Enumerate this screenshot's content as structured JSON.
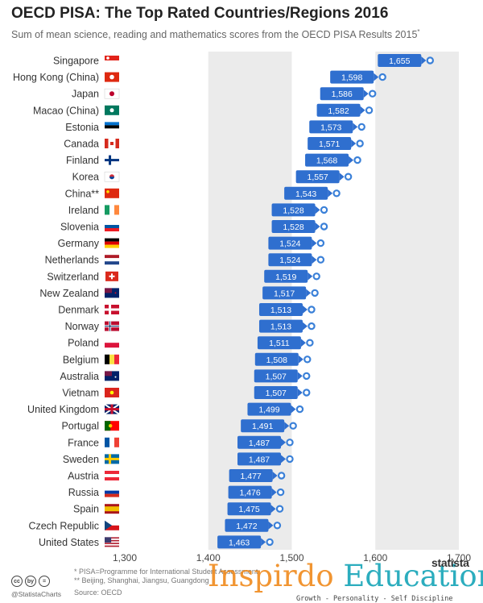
{
  "header": {
    "title": "OECD PISA: The Top Rated Countries/Regions 2016",
    "subtitle": "Sum of mean science, reading and mathematics scores from the OECD PISA Results 2015",
    "subtitle_marker": "*"
  },
  "chart_data": {
    "type": "bar",
    "orientation": "horizontal",
    "title": "OECD PISA: The Top Rated Countries/Regions 2016",
    "subtitle": "Sum of mean science, reading and mathematics scores from the OECD PISA Results 2015*",
    "xlim": [
      1300,
      1700
    ],
    "xticks": [
      1300,
      1400,
      1500,
      1600,
      1700
    ],
    "xtick_labels": [
      "1,300",
      "1,400",
      "1,500",
      "1,600",
      "1,700"
    ],
    "categories": [
      "Singapore",
      "Hong Kong (China)",
      "Japan",
      "Macao (China)",
      "Estonia",
      "Canada",
      "Finland",
      "Korea",
      "China**",
      "Ireland",
      "Slovenia",
      "Germany",
      "Netherlands",
      "Switzerland",
      "New Zealand",
      "Denmark",
      "Norway",
      "Poland",
      "Belgium",
      "Australia",
      "Vietnam",
      "United Kingdom",
      "Portugal",
      "France",
      "Sweden",
      "Austria",
      "Russia",
      "Spain",
      "Czech Republic",
      "United States"
    ],
    "values": [
      1655,
      1598,
      1586,
      1582,
      1573,
      1571,
      1568,
      1557,
      1543,
      1528,
      1528,
      1524,
      1524,
      1519,
      1517,
      1513,
      1513,
      1511,
      1508,
      1507,
      1507,
      1499,
      1491,
      1487,
      1487,
      1477,
      1476,
      1475,
      1472,
      1463
    ],
    "value_labels": [
      "1,655",
      "1,598",
      "1,586",
      "1,582",
      "1,573",
      "1,571",
      "1,568",
      "1,557",
      "1,543",
      "1,528",
      "1,528",
      "1,524",
      "1,524",
      "1,519",
      "1,517",
      "1,513",
      "1,513",
      "1,511",
      "1,508",
      "1,507",
      "1,507",
      "1,499",
      "1,491",
      "1,487",
      "1,487",
      "1,477",
      "1,476",
      "1,475",
      "1,472",
      "1,463"
    ],
    "bar_color": "#2f6fcf",
    "marker_color": "#3a80d8",
    "band_color": "#ebebeb"
  },
  "flags": [
    "singapore",
    "hong-kong",
    "japan",
    "macao",
    "estonia",
    "canada",
    "finland",
    "korea",
    "china",
    "ireland",
    "slovenia",
    "germany",
    "netherlands",
    "switzerland",
    "new-zealand",
    "denmark",
    "norway",
    "poland",
    "belgium",
    "australia",
    "vietnam",
    "united-kingdom",
    "portugal",
    "france",
    "sweden",
    "austria",
    "russia",
    "spain",
    "czech-republic",
    "united-states"
  ],
  "footer": {
    "notes": [
      "*   PISA=Programme for International Student Assessment",
      "** Beijing, Shanghai, Jiangsu, Guangdong"
    ],
    "source": "Source: OECD",
    "handle": "@StatistaCharts",
    "brand": "statista",
    "license_icons": [
      "cc",
      "by",
      "="
    ]
  },
  "watermark": {
    "word1": "Inspirdo",
    "word2": "Education",
    "tagline": "Growth - Personality - Self Discipline",
    "color_orange": "#f08a1c",
    "color_teal": "#16a5b7"
  }
}
